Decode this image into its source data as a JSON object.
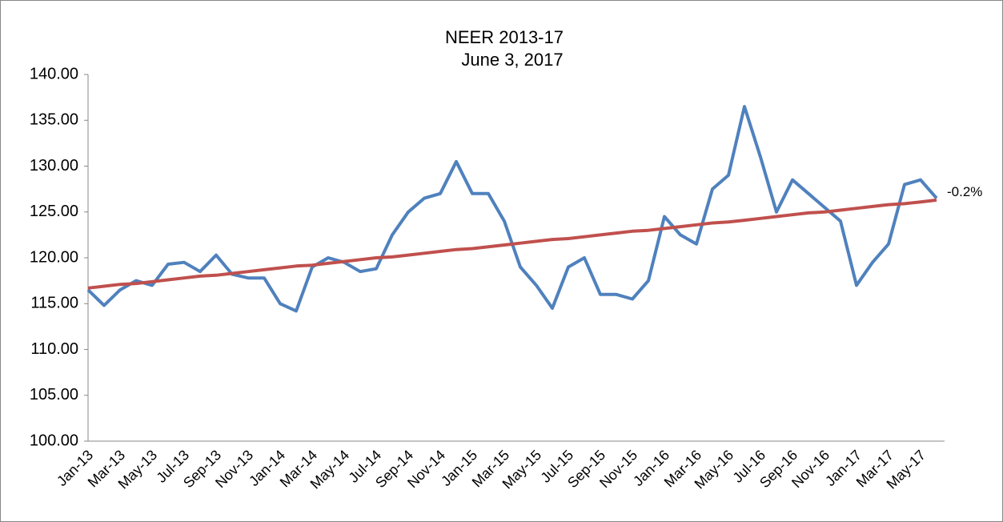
{
  "chart_data": {
    "type": "line",
    "title": "NEER 2013-17",
    "subtitle": "June 3, 2017",
    "annotation": "-0.2%",
    "categories": [
      "Jan-13",
      null,
      "Mar-13",
      null,
      "May-13",
      null,
      "Jul-13",
      null,
      "Sep-13",
      null,
      "Nov-13",
      null,
      "Jan-14",
      null,
      "Mar-14",
      null,
      "May-14",
      null,
      "Jul-14",
      null,
      "Sep-14",
      null,
      "Nov-14",
      null,
      "Jan-15",
      null,
      "Mar-15",
      null,
      "May-15",
      null,
      "Jul-15",
      null,
      "Sep-15",
      null,
      "Nov-15",
      null,
      "Jan-16",
      null,
      "Mar-16",
      null,
      "May-16",
      null,
      "Jul-16",
      null,
      "Sep-16",
      null,
      "Nov-16",
      null,
      "Jan-17",
      null,
      "Mar-17",
      null,
      "May-17",
      null
    ],
    "series": [
      {
        "color": "#4f81bd",
        "values": [
          116.5,
          114.8,
          116.5,
          117.5,
          117.0,
          119.3,
          119.5,
          118.5,
          120.3,
          118.2,
          117.8,
          117.8,
          115.0,
          114.2,
          119.0,
          120.0,
          119.5,
          118.5,
          118.8,
          122.5,
          125.0,
          126.5,
          127.0,
          130.5,
          127.0,
          127.0,
          124.0,
          119.0,
          117.0,
          114.5,
          119.0,
          120.0,
          116.0,
          116.0,
          115.5,
          117.5,
          124.5,
          122.5,
          121.5,
          127.5,
          129.0,
          136.5,
          131.0,
          125.0,
          128.5,
          127.0,
          125.5,
          124.0,
          117.0,
          119.5,
          121.5,
          128.0,
          128.5,
          126.5
        ]
      },
      {
        "color": "#c0504d",
        "values": [
          116.7,
          116.9,
          117.1,
          117.2,
          117.4,
          117.6,
          117.8,
          118.0,
          118.1,
          118.3,
          118.5,
          118.7,
          118.9,
          119.1,
          119.2,
          119.4,
          119.6,
          119.8,
          120.0,
          120.1,
          120.3,
          120.5,
          120.7,
          120.9,
          121.0,
          121.2,
          121.4,
          121.6,
          121.8,
          122.0,
          122.1,
          122.3,
          122.5,
          122.7,
          122.9,
          123.0,
          123.2,
          123.4,
          123.6,
          123.8,
          123.9,
          124.1,
          124.3,
          124.5,
          124.7,
          124.9,
          125.0,
          125.2,
          125.4,
          125.6,
          125.8,
          125.9,
          126.1,
          126.3
        ]
      }
    ],
    "ylim": [
      100,
      140
    ],
    "yticks": [
      {
        "value": 100,
        "label": "100.00"
      },
      {
        "value": 105,
        "label": "105.00"
      },
      {
        "value": 110,
        "label": "110.00"
      },
      {
        "value": 115,
        "label": "115.00"
      },
      {
        "value": 120,
        "label": "120.00"
      },
      {
        "value": 125,
        "label": "125.00"
      },
      {
        "value": 130,
        "label": "130.00"
      },
      {
        "value": 135,
        "label": "135.00"
      },
      {
        "value": 140,
        "label": "140.00"
      }
    ],
    "grid": false
  }
}
